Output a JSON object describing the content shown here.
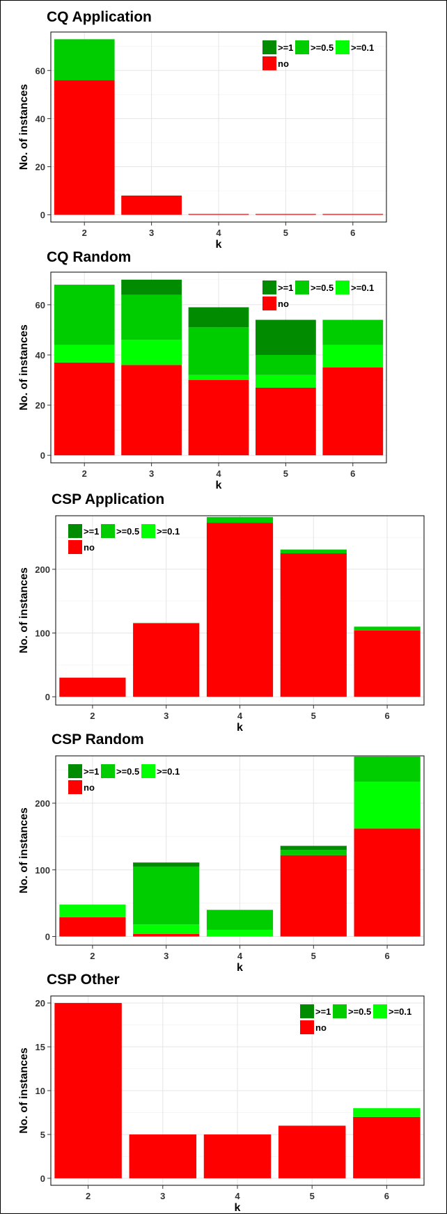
{
  "colors": {
    "ge1": "#008B00",
    "ge0_5": "#00CD00",
    "ge0_1": "#00FF00",
    "no": "#FF0000"
  },
  "chart_data": [
    {
      "type": "bar",
      "stacked": true,
      "title": "CQ Application",
      "xlabel": "k",
      "ylabel": "No. of instances",
      "categories": [
        "2",
        "3",
        "4",
        "5",
        "6"
      ],
      "ylim": [
        -3,
        76
      ],
      "yticks": [
        0,
        20,
        40,
        60
      ],
      "grid": true,
      "legend_position": "top-right",
      "series": [
        {
          "name": "no",
          "color_key": "no",
          "values": [
            56,
            8,
            0,
            0,
            0
          ]
        },
        {
          "name": ">=0.1",
          "color_key": "ge0_1",
          "values": [
            0,
            0,
            0,
            0,
            0
          ]
        },
        {
          "name": ">=0.5",
          "color_key": "ge0_5",
          "values": [
            17,
            0,
            0,
            0,
            0
          ]
        },
        {
          "name": ">=1",
          "color_key": "ge1",
          "values": [
            0,
            0,
            0,
            0,
            0
          ]
        }
      ]
    },
    {
      "type": "bar",
      "stacked": true,
      "title": "CQ Random",
      "xlabel": "k",
      "ylabel": "No. of instances",
      "categories": [
        "2",
        "3",
        "4",
        "5",
        "6"
      ],
      "ylim": [
        -3,
        73
      ],
      "yticks": [
        0,
        20,
        40,
        60
      ],
      "grid": true,
      "legend_position": "top-right",
      "series": [
        {
          "name": "no",
          "color_key": "no",
          "values": [
            37,
            36,
            30,
            27,
            35
          ]
        },
        {
          "name": ">=0.1",
          "color_key": "ge0_1",
          "values": [
            7,
            10,
            2,
            5,
            9
          ]
        },
        {
          "name": ">=0.5",
          "color_key": "ge0_5",
          "values": [
            24,
            18,
            19,
            8,
            10
          ]
        },
        {
          "name": ">=1",
          "color_key": "ge1",
          "values": [
            0,
            6,
            8,
            14,
            0
          ]
        }
      ]
    },
    {
      "type": "bar",
      "stacked": true,
      "title": "CSP Application",
      "xlabel": "k",
      "ylabel": "No. of instances",
      "categories": [
        "2",
        "3",
        "4",
        "5",
        "6"
      ],
      "ylim": [
        -13,
        284
      ],
      "yticks": [
        0,
        100,
        200
      ],
      "grid": true,
      "legend_position": "top-left",
      "series": [
        {
          "name": "no",
          "color_key": "no",
          "values": [
            30,
            115,
            273,
            225,
            104
          ]
        },
        {
          "name": ">=0.1",
          "color_key": "ge0_1",
          "values": [
            0,
            0,
            0,
            0,
            0
          ]
        },
        {
          "name": ">=0.5",
          "color_key": "ge0_5",
          "values": [
            0,
            1,
            9,
            6,
            6
          ]
        },
        {
          "name": ">=1",
          "color_key": "ge1",
          "values": [
            0,
            0,
            0,
            0,
            0
          ]
        }
      ]
    },
    {
      "type": "bar",
      "stacked": true,
      "title": "CSP Random",
      "xlabel": "k",
      "ylabel": "No. of instances",
      "categories": [
        "2",
        "3",
        "4",
        "5",
        "6"
      ],
      "ylim": [
        -13,
        271
      ],
      "yticks": [
        0,
        100,
        200
      ],
      "grid": true,
      "legend_position": "top-left",
      "series": [
        {
          "name": "no",
          "color_key": "no",
          "values": [
            29,
            4,
            0,
            122,
            162
          ]
        },
        {
          "name": ">=0.1",
          "color_key": "ge0_1",
          "values": [
            19,
            14,
            10,
            0,
            70
          ]
        },
        {
          "name": ">=0.5",
          "color_key": "ge0_5",
          "values": [
            0,
            87,
            30,
            8,
            38
          ]
        },
        {
          "name": ">=1",
          "color_key": "ge1",
          "values": [
            0,
            6,
            0,
            6,
            0
          ]
        }
      ]
    },
    {
      "type": "bar",
      "stacked": true,
      "title": "CSP Other",
      "xlabel": "k",
      "ylabel": "No. of instances",
      "categories": [
        "2",
        "3",
        "4",
        "5",
        "6"
      ],
      "ylim": [
        -0.8,
        20.8
      ],
      "yticks": [
        0,
        5,
        10,
        15,
        20
      ],
      "grid": true,
      "legend_position": "top-right",
      "series": [
        {
          "name": "no",
          "color_key": "no",
          "values": [
            20,
            5,
            5,
            6,
            7
          ]
        },
        {
          "name": ">=0.1",
          "color_key": "ge0_1",
          "values": [
            0,
            0,
            0,
            0,
            1
          ]
        },
        {
          "name": ">=0.5",
          "color_key": "ge0_5",
          "values": [
            0,
            0,
            0,
            0,
            0
          ]
        },
        {
          "name": ">=1",
          "color_key": "ge1",
          "values": [
            0,
            0,
            0,
            0,
            0
          ]
        }
      ]
    }
  ]
}
